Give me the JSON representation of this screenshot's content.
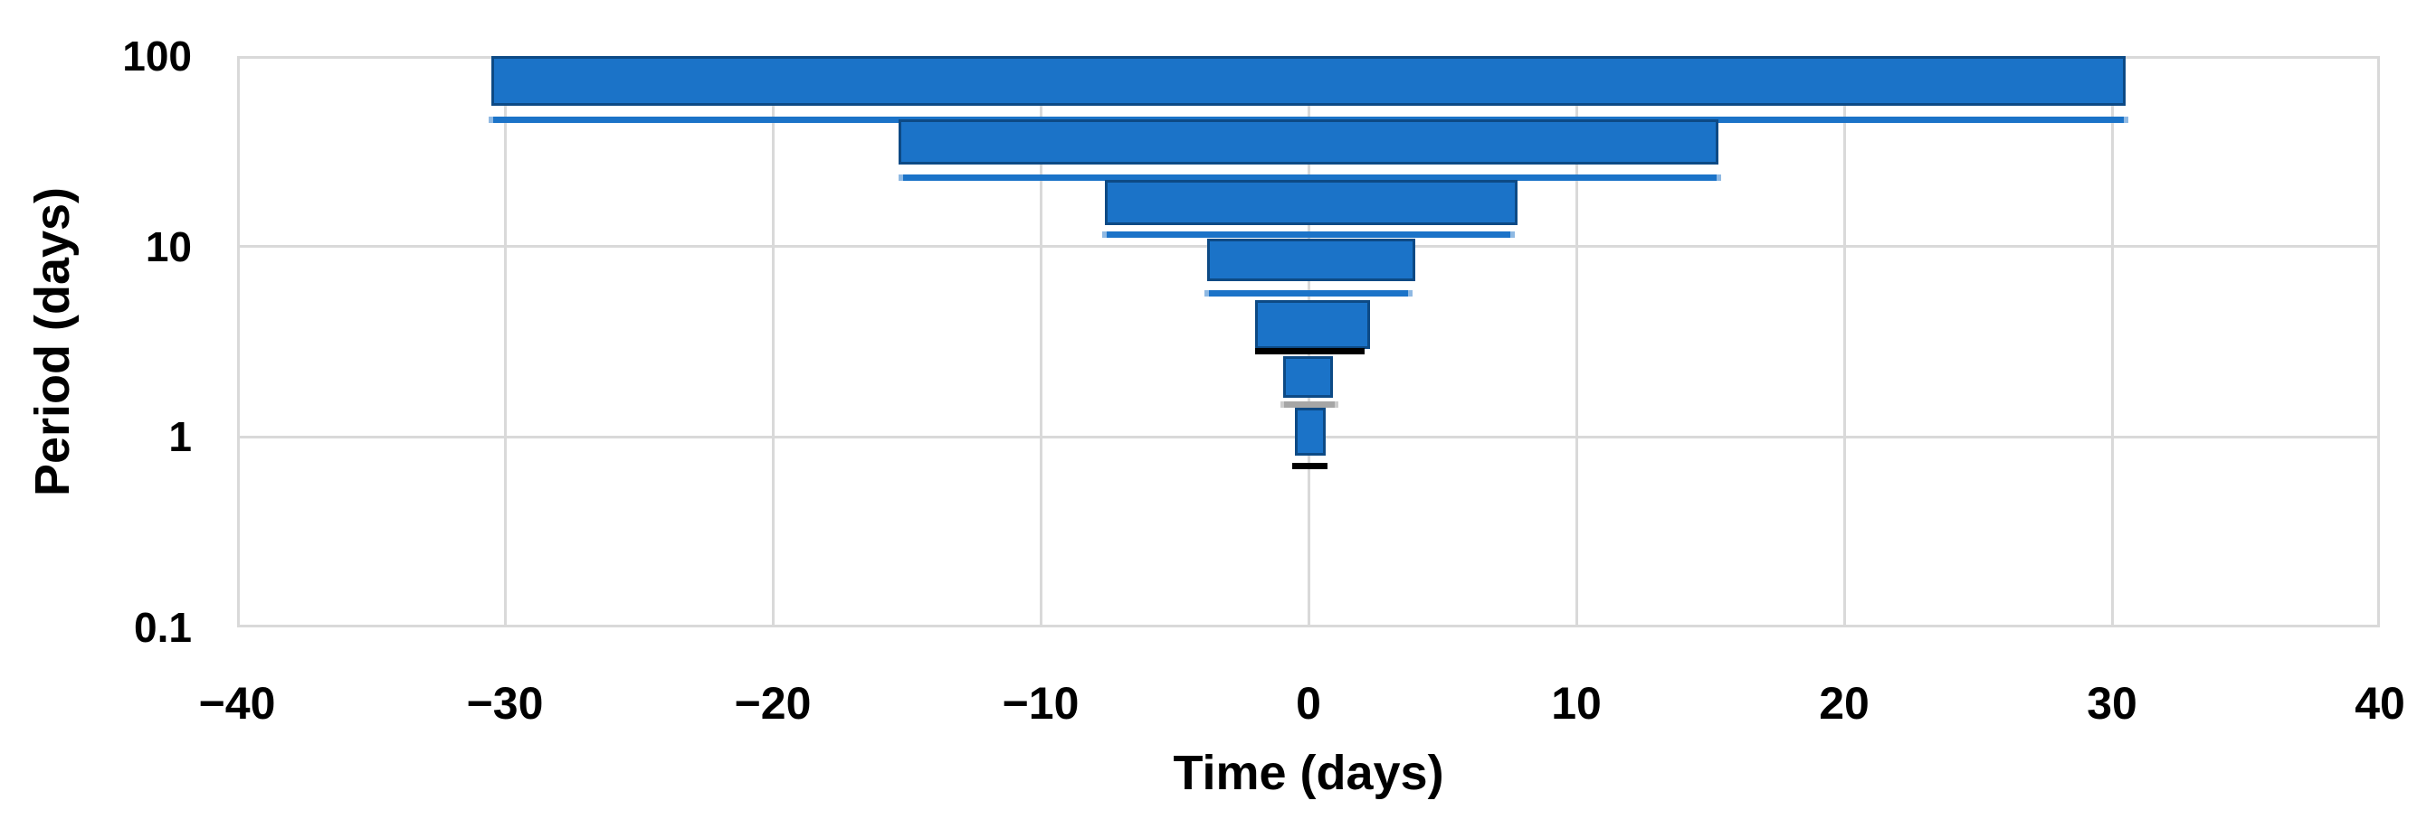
{
  "chart_data": {
    "type": "bar",
    "subtype": "horizontal-interval-funnel",
    "title": "",
    "xlabel": "Time (days)",
    "ylabel": "Period (days)",
    "x_axis": {
      "min": -40,
      "max": 40,
      "tick_values": [
        -40,
        -30,
        -20,
        -10,
        0,
        10,
        20,
        30,
        40
      ],
      "tick_labels": [
        "−40",
        "−30",
        "−20",
        "−10",
        "0",
        "10",
        "20",
        "30",
        "40"
      ]
    },
    "y_axis": {
      "scale": "log",
      "min": 0.1,
      "max": 100,
      "tick_values": [
        100,
        10,
        1,
        0.1
      ],
      "tick_labels": [
        "100",
        "10",
        "1",
        "0.1"
      ]
    },
    "grid": true,
    "legend": false,
    "bands": [
      {
        "bar": {
          "t_min": -30.5,
          "t_max": 30.5,
          "p_high": 100,
          "p_low": 54.6
        },
        "underline": {
          "t_min": -30.6,
          "t_max": 30.6,
          "p": 46.3,
          "color": "blue"
        }
      },
      {
        "bar": {
          "t_min": -15.3,
          "t_max": 15.3,
          "p_high": 46.7,
          "p_low": 27.0
        },
        "underline": {
          "t_min": -15.3,
          "t_max": 15.4,
          "p": 23.0,
          "color": "blue"
        }
      },
      {
        "bar": {
          "t_min": -7.6,
          "t_max": 7.8,
          "p_high": 22.4,
          "p_low": 12.9
        },
        "underline": {
          "t_min": -7.7,
          "t_max": 7.7,
          "p": 11.6,
          "color": "blue"
        }
      },
      {
        "bar": {
          "t_min": -3.8,
          "t_max": 4.0,
          "p_high": 11.0,
          "p_low": 6.6
        },
        "underline": {
          "t_min": -3.9,
          "t_max": 3.9,
          "p": 5.7,
          "color": "blue"
        }
      },
      {
        "bar": {
          "t_min": -2.0,
          "t_max": 2.3,
          "p_high": 5.2,
          "p_low": 2.9
        },
        "underline": {
          "t_min": -2.0,
          "t_max": 2.1,
          "p": 2.82,
          "color": "black"
        }
      },
      {
        "bar": {
          "t_min": -0.95,
          "t_max": 0.9,
          "p_high": 2.66,
          "p_low": 1.61
        },
        "underline": {
          "t_min": -1.05,
          "t_max": 1.1,
          "p": 1.48,
          "color": "gray"
        }
      },
      {
        "bar": {
          "t_min": -0.5,
          "t_max": 0.64,
          "p_high": 1.43,
          "p_low": 0.8
        },
        "underline": {
          "t_min": -0.6,
          "t_max": 0.7,
          "p": 0.7,
          "color": "black"
        }
      }
    ],
    "colors": {
      "bar_fill": "#1b73c8",
      "bar_border": "#0d4a85",
      "line_blue": "#1b73c8",
      "line_blue_cap": "#8fb9e3",
      "line_black": "#000000",
      "line_gray": "#a6a6a6",
      "line_gray_cap": "#cccccc",
      "grid": "#d9d9d9",
      "axis_text": "#000000"
    }
  }
}
